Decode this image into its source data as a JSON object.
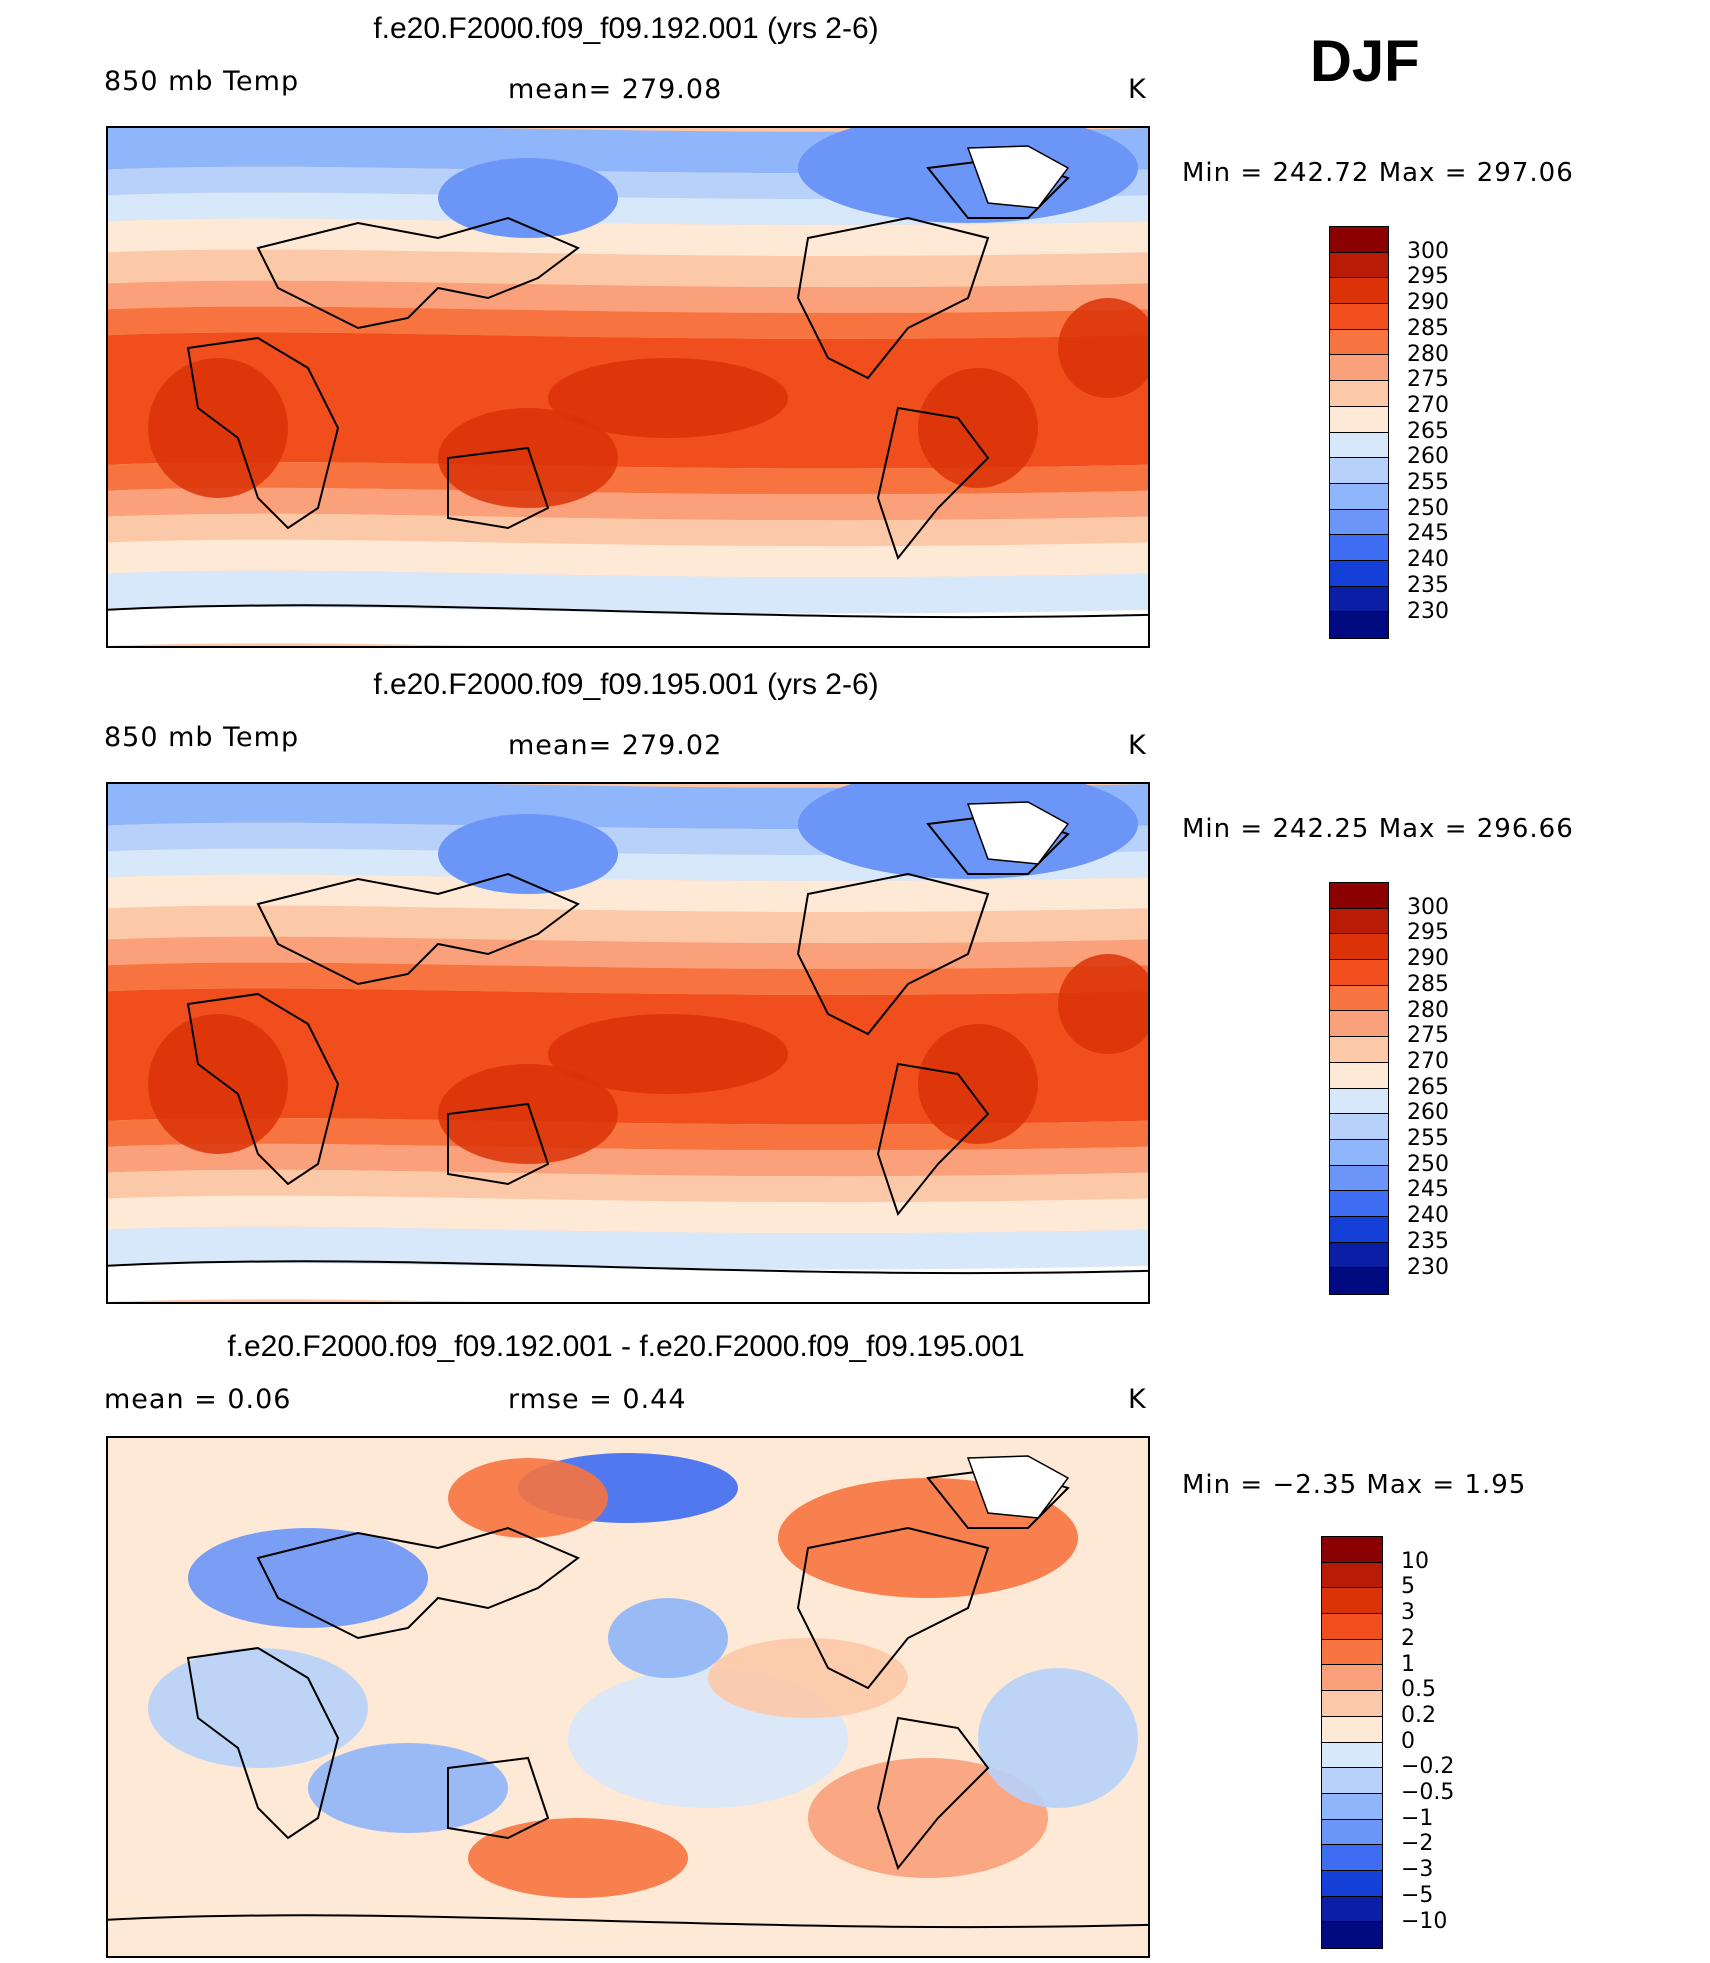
{
  "season": "DJF",
  "panels": [
    {
      "title": "f.e20.F2000.f09_f09.192.001 (yrs 2-6)",
      "left_label": "850 mb Temp",
      "center_label": "mean= 279.08",
      "units": "K",
      "minmax": "Min  =  242.72  Max  =  297.06",
      "colorbar": {
        "labels": [
          "300",
          "295",
          "290",
          "285",
          "280",
          "275",
          "270",
          "265",
          "260",
          "255",
          "250",
          "245",
          "240",
          "235",
          "230"
        ],
        "colors": [
          "#8b0000",
          "#b81c06",
          "#db3208",
          "#f04e1c",
          "#f7733f",
          "#faa07a",
          "#fcc9a8",
          "#fde9d6",
          "#d8e8fb",
          "#b7d1fb",
          "#8fb5fa",
          "#6b96f7",
          "#3e6cf2",
          "#1540d8",
          "#0a1ea6",
          "#000a80"
        ]
      },
      "field": {
        "n_lat": 0.9,
        "s_lat": 0.15,
        "arctic": "#6b96f7",
        "antarctic": "#d8e8fb"
      }
    },
    {
      "title": "f.e20.F2000.f09_f09.195.001 (yrs 2-6)",
      "left_label": "850 mb Temp",
      "center_label": "mean= 279.02",
      "units": "K",
      "minmax": "Min  =  242.25  Max  =  296.66",
      "colorbar": {
        "labels": [
          "300",
          "295",
          "290",
          "285",
          "280",
          "275",
          "270",
          "265",
          "260",
          "255",
          "250",
          "245",
          "240",
          "235",
          "230"
        ],
        "colors": [
          "#8b0000",
          "#b81c06",
          "#db3208",
          "#f04e1c",
          "#f7733f",
          "#faa07a",
          "#fcc9a8",
          "#fde9d6",
          "#d8e8fb",
          "#b7d1fb",
          "#8fb5fa",
          "#6b96f7",
          "#3e6cf2",
          "#1540d8",
          "#0a1ea6",
          "#000a80"
        ]
      },
      "field": {
        "n_lat": 0.9,
        "s_lat": 0.15,
        "arctic": "#6b96f7",
        "antarctic": "#d8e8fb"
      }
    },
    {
      "title": "f.e20.F2000.f09_f09.192.001 - f.e20.F2000.f09_f09.195.001",
      "left_label": "mean =     0.06",
      "center_label": "rmse =     0.44",
      "units": "K",
      "minmax": "Min  =    −2.35  Max  =      1.95",
      "colorbar": {
        "labels": [
          "10",
          "5",
          "3",
          "2",
          "1",
          "0.5",
          "0.2",
          "0",
          "−0.2",
          "−0.5",
          "−1",
          "−2",
          "−3",
          "−5",
          "−10"
        ],
        "colors": [
          "#8b0000",
          "#b81c06",
          "#db3208",
          "#f04e1c",
          "#f7733f",
          "#faa07a",
          "#fcc9a8",
          "#fde9d6",
          "#d8e8fb",
          "#b7d1fb",
          "#8fb5fa",
          "#6b96f7",
          "#3e6cf2",
          "#1540d8",
          "#0a1ea6",
          "#000a80"
        ]
      },
      "field": {
        "n_lat": 0.9,
        "s_lat": 0.15,
        "arctic": "#fde9d6",
        "antarctic": "#fde9d6"
      }
    }
  ]
}
